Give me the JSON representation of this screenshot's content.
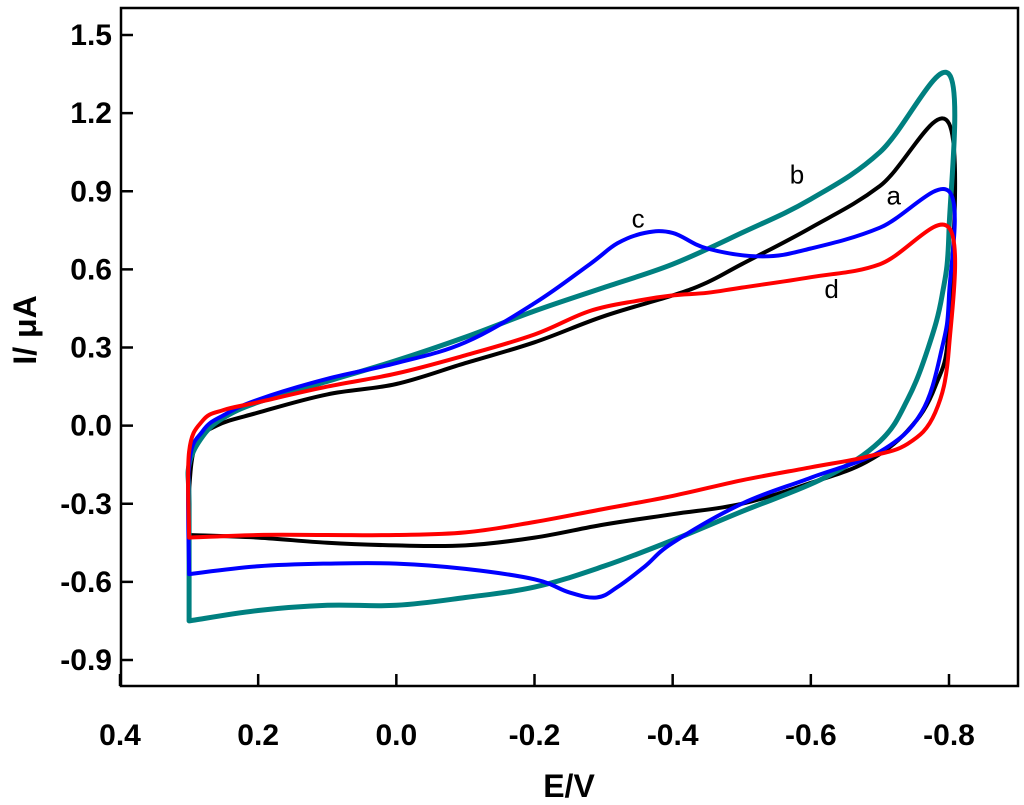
{
  "chart_data": {
    "type": "line",
    "title": "",
    "xlabel": "E/V",
    "ylabel": "I/ μA",
    "xlim": [
      0.4,
      -0.9
    ],
    "ylim": [
      -1.0,
      1.6
    ],
    "x_reversed": true,
    "grid": false,
    "x_ticks": [
      {
        "value": 0.4,
        "label": "0.4"
      },
      {
        "value": 0.2,
        "label": "0.2"
      },
      {
        "value": 0.0,
        "label": "0.0"
      },
      {
        "value": -0.2,
        "label": "-0.2"
      },
      {
        "value": -0.4,
        "label": "-0.4"
      },
      {
        "value": -0.6,
        "label": "-0.6"
      },
      {
        "value": -0.8,
        "label": "-0.8"
      }
    ],
    "y_ticks": [
      {
        "value": 1.5,
        "label": "1.5"
      },
      {
        "value": 1.2,
        "label": "1.2"
      },
      {
        "value": 0.9,
        "label": "0.9"
      },
      {
        "value": 0.6,
        "label": "0.6"
      },
      {
        "value": 0.3,
        "label": "0.3"
      },
      {
        "value": 0.0,
        "label": "0.0"
      },
      {
        "value": -0.3,
        "label": "-0.3"
      },
      {
        "value": -0.6,
        "label": "-0.6"
      },
      {
        "value": -0.9,
        "label": "-0.9"
      }
    ],
    "series": [
      {
        "name": "a",
        "color": "#000000",
        "stroke": 4,
        "label_pos": {
          "x": -0.72,
          "y": 0.85
        },
        "points": [
          [
            0.3,
            -0.42
          ],
          [
            0.2,
            -0.43
          ],
          [
            0.1,
            -0.45
          ],
          [
            0.0,
            -0.46
          ],
          [
            -0.1,
            -0.46
          ],
          [
            -0.2,
            -0.43
          ],
          [
            -0.3,
            -0.38
          ],
          [
            -0.4,
            -0.34
          ],
          [
            -0.5,
            -0.3
          ],
          [
            -0.6,
            -0.22
          ],
          [
            -0.68,
            -0.14
          ],
          [
            -0.74,
            -0.02
          ],
          [
            -0.78,
            0.15
          ],
          [
            -0.8,
            0.4
          ],
          [
            -0.8,
            1.16
          ],
          [
            -0.7,
            0.92
          ],
          [
            -0.6,
            0.76
          ],
          [
            -0.5,
            0.62
          ],
          [
            -0.45,
            0.55
          ],
          [
            -0.4,
            0.5
          ],
          [
            -0.3,
            0.42
          ],
          [
            -0.2,
            0.32
          ],
          [
            -0.1,
            0.24
          ],
          [
            0.0,
            0.16
          ],
          [
            0.1,
            0.12
          ],
          [
            0.2,
            0.05
          ],
          [
            0.26,
            0.0
          ],
          [
            0.29,
            -0.07
          ],
          [
            0.3,
            -0.25
          ],
          [
            0.3,
            -0.42
          ]
        ]
      },
      {
        "name": "b",
        "color": "#008080",
        "stroke": 5,
        "label_pos": {
          "x": -0.58,
          "y": 0.93
        },
        "points": [
          [
            0.3,
            -0.75
          ],
          [
            0.3,
            -0.3
          ],
          [
            0.3,
            -0.15
          ],
          [
            0.28,
            -0.04
          ],
          [
            0.25,
            0.03
          ],
          [
            0.2,
            0.09
          ],
          [
            0.1,
            0.17
          ],
          [
            0.0,
            0.25
          ],
          [
            -0.1,
            0.34
          ],
          [
            -0.2,
            0.44
          ],
          [
            -0.3,
            0.53
          ],
          [
            -0.4,
            0.62
          ],
          [
            -0.5,
            0.74
          ],
          [
            -0.6,
            0.87
          ],
          [
            -0.7,
            1.05
          ],
          [
            -0.8,
            1.35
          ],
          [
            -0.8,
            0.75
          ],
          [
            -0.79,
            0.5
          ],
          [
            -0.77,
            0.3
          ],
          [
            -0.74,
            0.1
          ],
          [
            -0.7,
            -0.06
          ],
          [
            -0.62,
            -0.2
          ],
          [
            -0.5,
            -0.33
          ],
          [
            -0.4,
            -0.44
          ],
          [
            -0.3,
            -0.54
          ],
          [
            -0.2,
            -0.62
          ],
          [
            -0.1,
            -0.66
          ],
          [
            0.0,
            -0.69
          ],
          [
            0.1,
            -0.69
          ],
          [
            0.2,
            -0.71
          ],
          [
            0.3,
            -0.75
          ]
        ]
      },
      {
        "name": "c",
        "color": "#0000ff",
        "stroke": 4,
        "label_pos": {
          "x": -0.35,
          "y": 0.76
        },
        "points": [
          [
            0.3,
            -0.57
          ],
          [
            0.2,
            -0.54
          ],
          [
            0.1,
            -0.53
          ],
          [
            0.0,
            -0.53
          ],
          [
            -0.1,
            -0.55
          ],
          [
            -0.2,
            -0.59
          ],
          [
            -0.25,
            -0.64
          ],
          [
            -0.29,
            -0.66
          ],
          [
            -0.32,
            -0.62
          ],
          [
            -0.36,
            -0.54
          ],
          [
            -0.4,
            -0.45
          ],
          [
            -0.5,
            -0.3
          ],
          [
            -0.6,
            -0.2
          ],
          [
            -0.7,
            -0.1
          ],
          [
            -0.76,
            0.05
          ],
          [
            -0.79,
            0.3
          ],
          [
            -0.8,
            0.5
          ],
          [
            -0.8,
            0.9
          ],
          [
            -0.7,
            0.76
          ],
          [
            -0.6,
            0.68
          ],
          [
            -0.53,
            0.65
          ],
          [
            -0.45,
            0.68
          ],
          [
            -0.4,
            0.74
          ],
          [
            -0.36,
            0.74
          ],
          [
            -0.32,
            0.7
          ],
          [
            -0.28,
            0.62
          ],
          [
            -0.2,
            0.47
          ],
          [
            -0.1,
            0.32
          ],
          [
            0.0,
            0.24
          ],
          [
            0.1,
            0.18
          ],
          [
            0.2,
            0.1
          ],
          [
            0.25,
            0.04
          ],
          [
            0.28,
            -0.02
          ],
          [
            0.3,
            -0.15
          ],
          [
            0.3,
            -0.57
          ]
        ]
      },
      {
        "name": "d",
        "color": "#ff0000",
        "stroke": 4,
        "label_pos": {
          "x": -0.63,
          "y": 0.49
        },
        "points": [
          [
            0.3,
            -0.43
          ],
          [
            0.2,
            -0.42
          ],
          [
            0.1,
            -0.42
          ],
          [
            0.0,
            -0.42
          ],
          [
            -0.1,
            -0.41
          ],
          [
            -0.2,
            -0.37
          ],
          [
            -0.3,
            -0.32
          ],
          [
            -0.4,
            -0.27
          ],
          [
            -0.5,
            -0.21
          ],
          [
            -0.6,
            -0.16
          ],
          [
            -0.68,
            -0.12
          ],
          [
            -0.74,
            -0.07
          ],
          [
            -0.78,
            0.05
          ],
          [
            -0.8,
            0.3
          ],
          [
            -0.8,
            0.76
          ],
          [
            -0.7,
            0.62
          ],
          [
            -0.6,
            0.57
          ],
          [
            -0.5,
            0.53
          ],
          [
            -0.45,
            0.51
          ],
          [
            -0.4,
            0.5
          ],
          [
            -0.35,
            0.48
          ],
          [
            -0.28,
            0.44
          ],
          [
            -0.2,
            0.35
          ],
          [
            -0.1,
            0.27
          ],
          [
            0.0,
            0.2
          ],
          [
            0.1,
            0.15
          ],
          [
            0.2,
            0.09
          ],
          [
            0.25,
            0.06
          ],
          [
            0.28,
            0.02
          ],
          [
            0.3,
            -0.1
          ],
          [
            0.3,
            -0.43
          ]
        ]
      }
    ]
  }
}
